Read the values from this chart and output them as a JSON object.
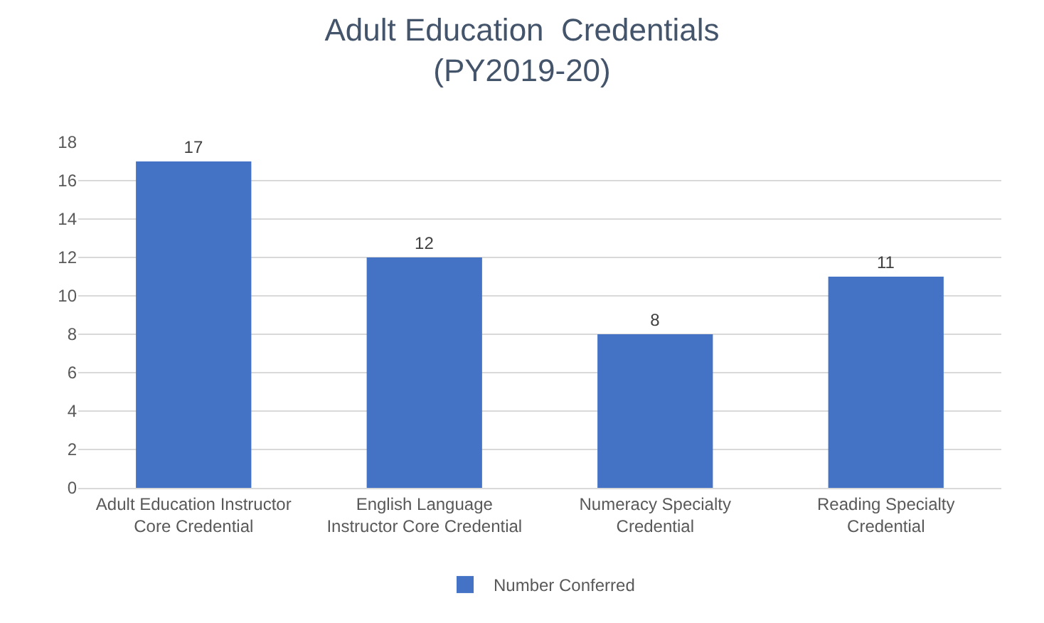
{
  "chart_data": {
    "type": "bar",
    "title": "Adult Education  Credentials\n(PY2019-20)",
    "categories": [
      "Adult Education Instructor\nCore Credential",
      "English Language\nInstructor Core Credential",
      "Numeracy Specialty\nCredential",
      "Reading Specialty\nCredential"
    ],
    "series": [
      {
        "name": "Number Conferred",
        "color": "#4472c4",
        "values": [
          17,
          12,
          8,
          11
        ]
      }
    ],
    "ylim": [
      0,
      18
    ],
    "yticks": [
      0,
      2,
      4,
      6,
      8,
      10,
      12,
      14,
      16,
      18
    ],
    "grid": "y",
    "legend": "bottom",
    "data_labels": true
  }
}
